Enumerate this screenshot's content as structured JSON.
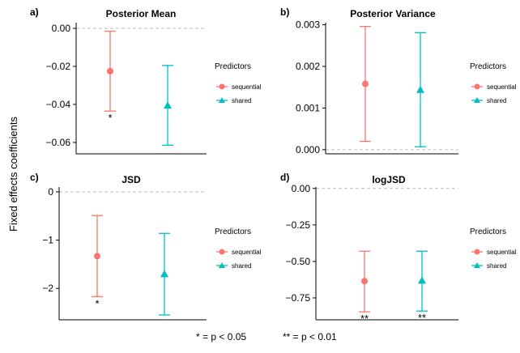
{
  "figure": {
    "ylabel": "Fixed effects coefficients",
    "footnote_1": "* = p < 0.05",
    "footnote_2": "** = p < 0.01",
    "colors": {
      "sequential": "#F8766D",
      "shared": "#00BFC4",
      "reference_line": "#bdbdbd"
    }
  },
  "chart_data": [
    {
      "type": "errorbar",
      "letter": "a)",
      "title": "Posterior Mean",
      "ylim": [
        -0.066,
        0.003
      ],
      "yticks": [
        0.0,
        -0.02,
        -0.04,
        -0.06
      ],
      "ytick_labels": [
        "0.00",
        "−0.02",
        "−0.04",
        "−0.06"
      ],
      "reference_line": 0,
      "legend": {
        "title": "Predictors",
        "entries": [
          "sequential",
          "shared"
        ]
      },
      "series": [
        {
          "name": "sequential",
          "estimate": -0.0225,
          "lower": -0.0435,
          "upper": -0.0015,
          "significance": "*"
        },
        {
          "name": "shared",
          "estimate": -0.0405,
          "lower": -0.0615,
          "upper": -0.0195,
          "significance": ""
        }
      ]
    },
    {
      "type": "errorbar",
      "letter": "b)",
      "title": "Posterior Variance",
      "ylim": [
        -0.0001,
        0.00305
      ],
      "yticks": [
        0.0,
        0.001,
        0.002,
        0.003
      ],
      "ytick_labels": [
        "0.000",
        "0.001",
        "0.002",
        "0.003"
      ],
      "reference_line": 0,
      "legend": {
        "title": "Predictors",
        "entries": [
          "sequential",
          "shared"
        ]
      },
      "series": [
        {
          "name": "sequential",
          "estimate": 0.00158,
          "lower": 0.0002,
          "upper": 0.00296,
          "significance": ""
        },
        {
          "name": "shared",
          "estimate": 0.00144,
          "lower": 7e-05,
          "upper": 0.00281,
          "significance": ""
        }
      ]
    },
    {
      "type": "errorbar",
      "letter": "c)",
      "title": "JSD",
      "ylim": [
        -2.65,
        0.1
      ],
      "yticks": [
        0,
        -1,
        -2
      ],
      "ytick_labels": [
        "0",
        "−1",
        "−2"
      ],
      "reference_line": 0,
      "legend": {
        "title": "Predictors",
        "entries": [
          "sequential",
          "shared"
        ]
      },
      "series": [
        {
          "name": "sequential",
          "estimate": -1.33,
          "lower": -2.17,
          "upper": -0.49,
          "significance": "*"
        },
        {
          "name": "shared",
          "estimate": -1.7,
          "lower": -2.55,
          "upper": -0.86,
          "significance": ""
        }
      ]
    },
    {
      "type": "errorbar",
      "letter": "d)",
      "title": "logJSD",
      "ylim": [
        -0.9,
        0.01
      ],
      "yticks": [
        0.0,
        -0.25,
        -0.5,
        -0.75
      ],
      "ytick_labels": [
        "0.00",
        "−0.25",
        "−0.50",
        "−0.75"
      ],
      "reference_line": 0,
      "legend": {
        "title": "Predictors",
        "entries": [
          "sequential",
          "shared"
        ]
      },
      "series": [
        {
          "name": "sequential",
          "estimate": -0.635,
          "lower": -0.845,
          "upper": -0.43,
          "significance": "**"
        },
        {
          "name": "shared",
          "estimate": -0.63,
          "lower": -0.84,
          "upper": -0.43,
          "significance": "**"
        }
      ]
    }
  ]
}
